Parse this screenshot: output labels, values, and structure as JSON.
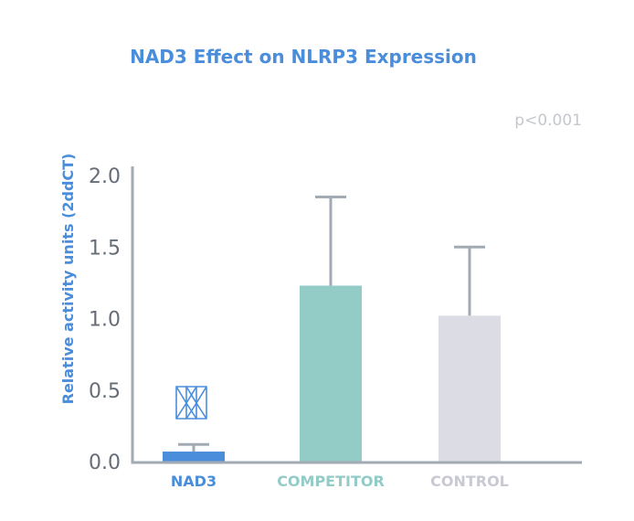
{
  "chart_data": {
    "type": "bar",
    "title": "NAD3 Effect on NLRP3 Expression",
    "ylabel": "Relative activity units (2ddCT)",
    "xlabel": "",
    "annotation": "p<0.001",
    "ylim": [
      0,
      2.0
    ],
    "yticks": [
      "0.0",
      "0.5",
      "1.0",
      "1.5",
      "2.0"
    ],
    "grid": false,
    "categories": [
      "NAD3",
      "COMPETITOR",
      "CONTROL"
    ],
    "values": [
      0.07,
      1.23,
      1.02
    ],
    "error_upper": [
      0.12,
      1.85,
      1.5
    ],
    "bar_colors": [
      "#4a8ddb",
      "#93cbc7",
      "#dcdce4"
    ],
    "label_colors": [
      "#4a8ddb",
      "#93cbc7",
      "#c9c9d3"
    ],
    "accent_color": "#4a8ddb",
    "axis_color": "#a2aab3",
    "icon": "nad3-molecule-logo"
  }
}
